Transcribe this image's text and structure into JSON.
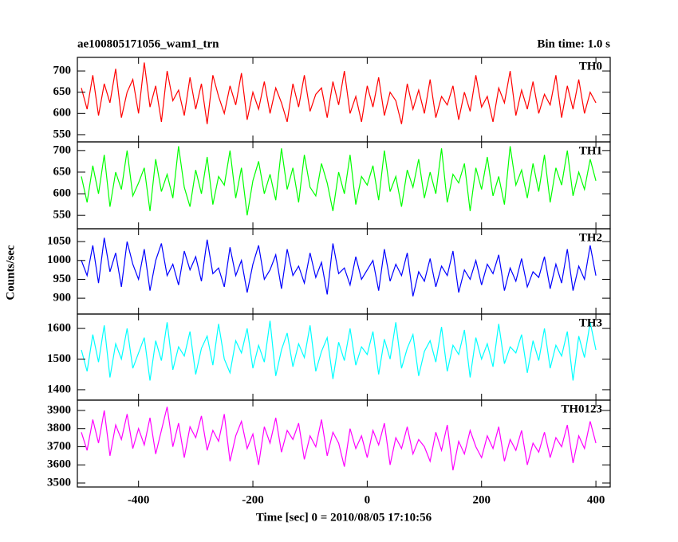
{
  "chart_data": {
    "type": "line",
    "title": "ae100805171056_wam1_trn",
    "subtitle": "Bin time: 1.0 s",
    "x_label": "Time [sec] 0 = 2010/08/05 17:10:56",
    "y_label": "Counts/sec",
    "xlim": [
      -507,
      425
    ],
    "xticks": [
      -400,
      -200,
      0,
      200,
      400
    ],
    "x": [
      -500,
      -490,
      -480,
      -470,
      -460,
      -450,
      -440,
      -430,
      -420,
      -410,
      -400,
      -390,
      -380,
      -370,
      -360,
      -350,
      -340,
      -330,
      -320,
      -310,
      -300,
      -290,
      -280,
      -270,
      -260,
      -250,
      -240,
      -230,
      -220,
      -210,
      -200,
      -190,
      -180,
      -170,
      -160,
      -150,
      -140,
      -130,
      -120,
      -110,
      -100,
      -90,
      -80,
      -70,
      -60,
      -50,
      -40,
      -30,
      -20,
      -10,
      0,
      10,
      20,
      30,
      40,
      50,
      60,
      70,
      80,
      90,
      100,
      110,
      120,
      130,
      140,
      150,
      160,
      170,
      180,
      190,
      200,
      210,
      220,
      230,
      240,
      250,
      260,
      270,
      280,
      290,
      300,
      310,
      320,
      330,
      340,
      350,
      360,
      370,
      380,
      390,
      400
    ],
    "series": [
      {
        "name": "TH0",
        "color": "#ff0000",
        "ylim": [
          533,
          732
        ],
        "yticks": [
          550,
          600,
          650,
          700
        ],
        "values": [
          660,
          610,
          690,
          595,
          670,
          625,
          705,
          590,
          650,
          680,
          600,
          720,
          615,
          665,
          580,
          700,
          630,
          655,
          595,
          685,
          610,
          670,
          575,
          690,
          640,
          600,
          665,
          620,
          695,
          585,
          650,
          610,
          675,
          600,
          660,
          625,
          580,
          670,
          615,
          690,
          605,
          645,
          660,
          590,
          675,
          620,
          700,
          600,
          640,
          580,
          665,
          615,
          685,
          595,
          650,
          630,
          575,
          670,
          610,
          655,
          600,
          680,
          590,
          640,
          620,
          665,
          585,
          650,
          605,
          690,
          615,
          640,
          580,
          660,
          625,
          700,
          595,
          655,
          610,
          675,
          600,
          645,
          620,
          690,
          590,
          665,
          610,
          680,
          600,
          650,
          625
        ]
      },
      {
        "name": "TH1",
        "color": "#00ff00",
        "ylim": [
          519,
          720
        ],
        "yticks": [
          550,
          600,
          650,
          700
        ],
        "values": [
          640,
          580,
          665,
          600,
          690,
          570,
          650,
          610,
          700,
          595,
          625,
          660,
          560,
          680,
          605,
          645,
          590,
          710,
          615,
          570,
          655,
          600,
          685,
          575,
          640,
          620,
          700,
          590,
          660,
          550,
          630,
          675,
          600,
          645,
          585,
          705,
          610,
          660,
          580,
          690,
          615,
          595,
          670,
          625,
          560,
          650,
          600,
          690,
          575,
          640,
          620,
          665,
          585,
          700,
          605,
          640,
          570,
          655,
          615,
          680,
          590,
          650,
          600,
          705,
          580,
          645,
          625,
          670,
          560,
          660,
          610,
          685,
          595,
          640,
          575,
          710,
          620,
          655,
          590,
          670,
          605,
          690,
          580,
          660,
          620,
          700,
          595,
          650,
          610,
          680,
          630
        ]
      },
      {
        "name": "TH2",
        "color": "#0000ff",
        "ylim": [
          858,
          1084
        ],
        "yticks": [
          900,
          950,
          1000,
          1050
        ],
        "values": [
          1000,
          960,
          1040,
          940,
          1060,
          970,
          1020,
          930,
          1050,
          990,
          950,
          1030,
          920,
          1000,
          1045,
          960,
          990,
          935,
          1025,
          975,
          1010,
          945,
          1055,
          965,
          980,
          930,
          1035,
          960,
          1000,
          915,
          990,
          1040,
          950,
          975,
          1015,
          925,
          1030,
          960,
          985,
          940,
          1020,
          955,
          995,
          910,
          1045,
          965,
          980,
          935,
          1010,
          950,
          975,
          1000,
          920,
          1030,
          945,
          990,
          960,
          1020,
          905,
          970,
          945,
          1005,
          930,
          985,
          960,
          1025,
          915,
          975,
          950,
          1000,
          935,
          990,
          965,
          1015,
          920,
          980,
          945,
          1005,
          930,
          970,
          955,
          1010,
          925,
          990,
          940,
          1030,
          920,
          985,
          950,
          1040,
          960
        ]
      },
      {
        "name": "TH3",
        "color": "#00ffff",
        "ylim": [
          1366,
          1647
        ],
        "yticks": [
          1400,
          1500,
          1600
        ],
        "values": [
          1530,
          1460,
          1580,
          1490,
          1610,
          1440,
          1550,
          1500,
          1600,
          1470,
          1520,
          1570,
          1430,
          1560,
          1495,
          1620,
          1465,
          1540,
          1510,
          1590,
          1450,
          1535,
          1575,
          1480,
          1615,
          1500,
          1455,
          1560,
          1520,
          1600,
          1470,
          1545,
          1490,
          1625,
          1445,
          1530,
          1585,
          1475,
          1550,
          1505,
          1610,
          1460,
          1525,
          1570,
          1435,
          1555,
          1495,
          1600,
          1480,
          1540,
          1515,
          1590,
          1450,
          1565,
          1500,
          1620,
          1470,
          1535,
          1580,
          1445,
          1525,
          1560,
          1490,
          1605,
          1460,
          1545,
          1515,
          1595,
          1440,
          1570,
          1500,
          1550,
          1475,
          1615,
          1485,
          1540,
          1520,
          1580,
          1455,
          1560,
          1495,
          1600,
          1470,
          1545,
          1510,
          1590,
          1430,
          1575,
          1505,
          1620,
          1530
        ]
      },
      {
        "name": "TH0123",
        "color": "#ff00ff",
        "ylim": [
          3478,
          3957
        ],
        "yticks": [
          3500,
          3600,
          3700,
          3800,
          3900
        ],
        "values": [
          3780,
          3680,
          3850,
          3720,
          3900,
          3650,
          3820,
          3740,
          3880,
          3690,
          3800,
          3710,
          3860,
          3660,
          3790,
          3920,
          3700,
          3830,
          3640,
          3810,
          3750,
          3870,
          3680,
          3790,
          3730,
          3880,
          3620,
          3760,
          3840,
          3690,
          3770,
          3600,
          3810,
          3720,
          3860,
          3670,
          3790,
          3740,
          3830,
          3630,
          3760,
          3700,
          3850,
          3650,
          3780,
          3720,
          3590,
          3800,
          3690,
          3760,
          3640,
          3790,
          3710,
          3830,
          3600,
          3750,
          3690,
          3810,
          3660,
          3740,
          3700,
          3620,
          3780,
          3680,
          3820,
          3570,
          3730,
          3660,
          3790,
          3700,
          3640,
          3760,
          3690,
          3810,
          3620,
          3740,
          3680,
          3790,
          3600,
          3720,
          3670,
          3780,
          3640,
          3750,
          3700,
          3820,
          3610,
          3760,
          3690,
          3840,
          3720
        ]
      }
    ]
  }
}
